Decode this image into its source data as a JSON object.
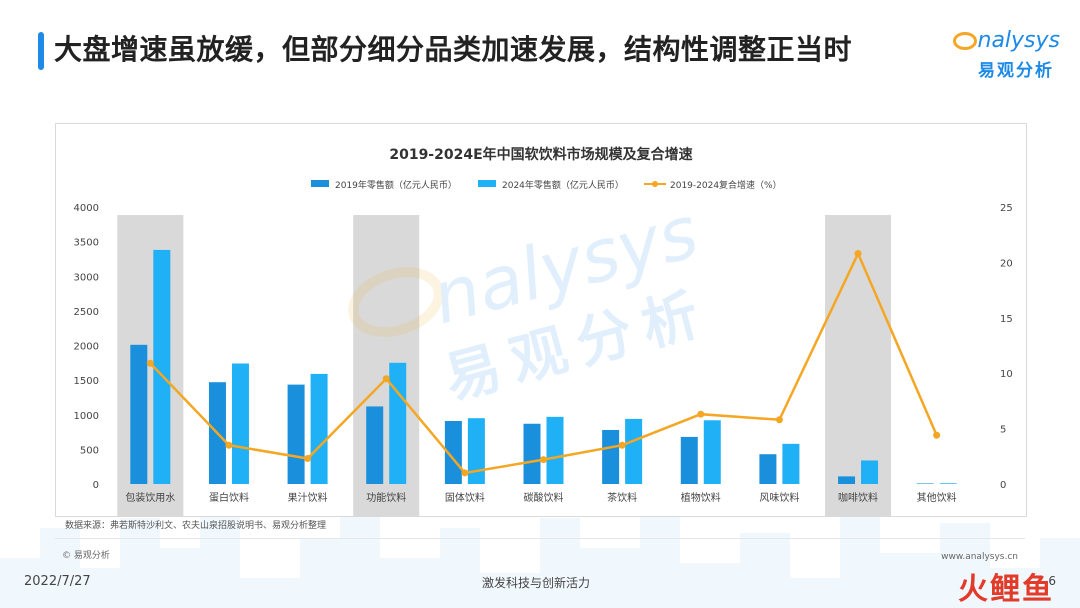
{
  "header": {
    "title": "大盘增速虽放缓，但部分细分品类加速发展，结构性调整正当时",
    "brand_en": "nalysys",
    "brand_cn": "易观分析"
  },
  "footer": {
    "source": "数据来源：弗若斯特沙利文、农夫山泉招股说明书、易观分析整理",
    "copyright": "© 易观分析",
    "website": "www.analysys.cn",
    "date": "2022/7/27",
    "slogan": "激发科技与创新活力",
    "page_number": "6",
    "corner_logo": [
      "火",
      "鲤",
      "鱼"
    ]
  },
  "watermark": {
    "en": "nalysys",
    "cn": "易观分析"
  },
  "colors": {
    "accent": "#1c8ae6",
    "bar2019": "#1a8fdb",
    "bar2024": "#1fb0f5",
    "line": "#f5a623",
    "highlight": "#d9d9d9"
  },
  "chart_data": {
    "type": "bar",
    "title": "2019-2024E年中国软饮料市场规模及复合增速",
    "categories": [
      "包装饮用水",
      "蛋白饮料",
      "果汁饮料",
      "功能饮料",
      "固体饮料",
      "碳酸饮料",
      "茶饮料",
      "植物饮料",
      "风味饮料",
      "咖啡饮料",
      "其他饮料"
    ],
    "series": [
      {
        "name": "2019年零售额（亿元人民币）",
        "type": "bar",
        "axis": "left",
        "values": [
          2010,
          1470,
          1435,
          1120,
          910,
          870,
          780,
          680,
          430,
          110,
          8
        ]
      },
      {
        "name": "2024年零售额（亿元人民币）",
        "type": "bar",
        "axis": "left",
        "values": [
          3380,
          1740,
          1590,
          1750,
          950,
          970,
          940,
          920,
          580,
          340,
          10
        ]
      },
      {
        "name": "2019-2024复合增速（%）",
        "type": "line",
        "axis": "right",
        "values": [
          10.9,
          3.5,
          2.3,
          9.5,
          1.0,
          2.2,
          3.5,
          6.3,
          5.8,
          20.8,
          4.4
        ]
      }
    ],
    "highlighted_categories": [
      "包装饮用水",
      "功能饮料",
      "咖啡饮料"
    ],
    "y_left": {
      "min": 0,
      "max": 4000,
      "ticks": [
        "0",
        "500",
        "1000",
        "1500",
        "2000",
        "2500",
        "3000",
        "3500",
        "4000"
      ]
    },
    "y_right": {
      "min": 0,
      "max": 25,
      "ticks": [
        "0",
        "5",
        "10",
        "15",
        "20",
        "25"
      ]
    },
    "legend_position": "top-center",
    "grid": false
  }
}
